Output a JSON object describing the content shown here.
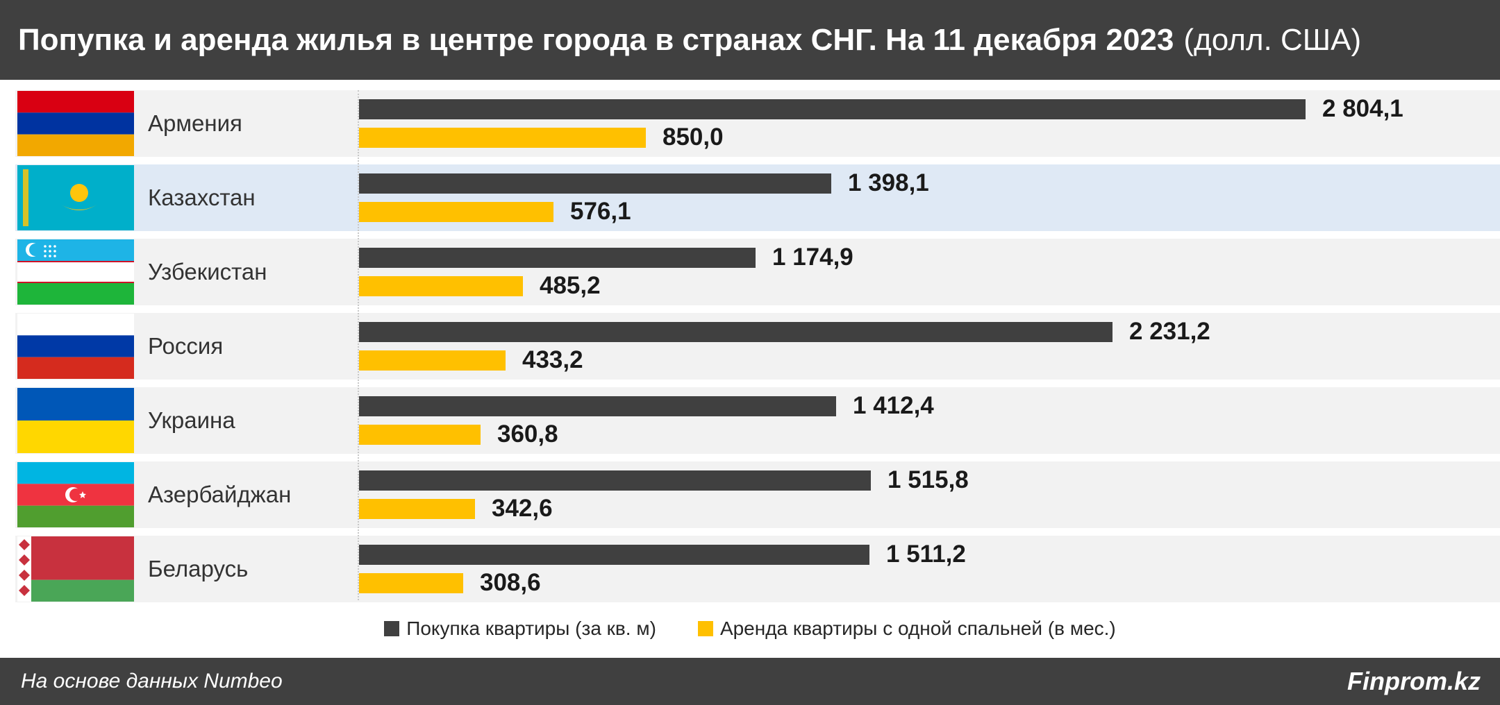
{
  "header": {
    "title_bold": "Попупка и аренда жилья в центре города в странах СНГ. На 11 декабря 2023",
    "title_unit": "(долл. США)"
  },
  "chart_data": {
    "type": "bar",
    "orientation": "horizontal",
    "categories": [
      "Армения",
      "Казахстан",
      "Узбекистан",
      "Россия",
      "Украина",
      "Азербайджан",
      "Беларусь"
    ],
    "series": [
      {
        "name": "Покупка квартиры (за кв. м)",
        "color": "#404040",
        "values": [
          2804.1,
          1398.1,
          1174.9,
          2231.2,
          1412.4,
          1515.8,
          1511.2
        ],
        "labels": [
          "2 804,1",
          "1 398,1",
          "1 174,9",
          "2 231,2",
          "1 412,4",
          "1 515,8",
          "1 511,2"
        ]
      },
      {
        "name": "Аренда квартиры с одной спальней (в мес.)",
        "color": "#ffc000",
        "values": [
          850.0,
          576.1,
          485.2,
          433.2,
          360.8,
          342.6,
          308.6
        ],
        "labels": [
          "850,0",
          "576,1",
          "485,2",
          "433,2",
          "360,8",
          "342,6",
          "308,6"
        ]
      }
    ],
    "highlight_category": "Казахстан",
    "flags": [
      "armenia-flag",
      "kazakhstan-flag",
      "uzbekistan-flag",
      "russia-flag",
      "ukraine-flag",
      "azerbaijan-flag",
      "belarus-flag"
    ],
    "xlim": [
      0,
      2804.1
    ],
    "legend_position": "bottom",
    "grid": false
  },
  "footer": {
    "source": "На основе данных Numbeo",
    "brand": "Finprom.kz"
  }
}
